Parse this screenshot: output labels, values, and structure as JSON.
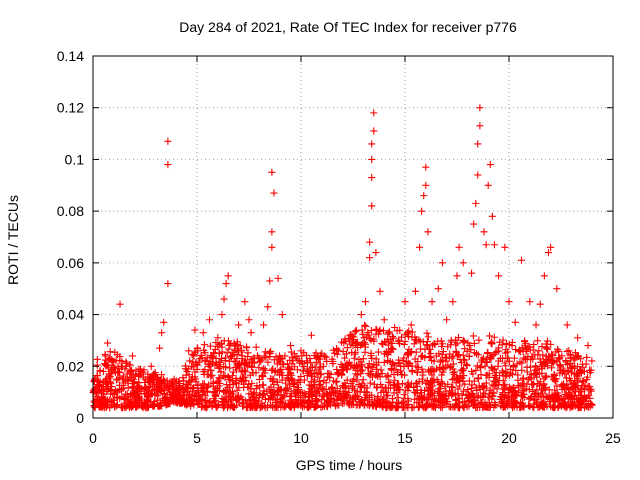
{
  "chart_data": {
    "type": "scatter",
    "title": "Day 284 of 2021, Rate Of TEC Index for receiver p776",
    "xlabel": "GPS time / hours",
    "ylabel": "ROTI / TECUs",
    "xlim": [
      0,
      25
    ],
    "ylim": [
      0,
      0.14
    ],
    "x_ticks": [
      0,
      5,
      10,
      15,
      20,
      25
    ],
    "x_tick_labels": [
      "0",
      "5",
      "10",
      "15",
      "20",
      "25"
    ],
    "y_ticks": [
      0,
      0.02,
      0.04,
      0.06,
      0.08,
      0.1,
      0.12,
      0.14
    ],
    "y_tick_labels": [
      "0",
      "0.02",
      "0.04",
      "0.06",
      "0.08",
      "0.1",
      "0.12",
      "0.14"
    ],
    "grid": true,
    "marker": "+",
    "color": "#ff0000",
    "series": [
      {
        "name": "ROTI",
        "points": [
          [
            0.1,
            0.006
          ],
          [
            0.3,
            0.012
          ],
          [
            0.5,
            0.018
          ],
          [
            0.6,
            0.024
          ],
          [
            0.7,
            0.029
          ],
          [
            1.0,
            0.022
          ],
          [
            1.2,
            0.015
          ],
          [
            1.3,
            0.044
          ],
          [
            1.6,
            0.02
          ],
          [
            1.9,
            0.024
          ],
          [
            2.3,
            0.018
          ],
          [
            2.8,
            0.02
          ],
          [
            3.2,
            0.027
          ],
          [
            3.3,
            0.033
          ],
          [
            3.4,
            0.037
          ],
          [
            3.6,
            0.052
          ],
          [
            3.6,
            0.098
          ],
          [
            3.6,
            0.107
          ],
          [
            3.9,
            0.015
          ],
          [
            4.6,
            0.026
          ],
          [
            4.9,
            0.034
          ],
          [
            5.3,
            0.033
          ],
          [
            5.6,
            0.038
          ],
          [
            5.8,
            0.025
          ],
          [
            6.0,
            0.031
          ],
          [
            6.2,
            0.04
          ],
          [
            6.3,
            0.046
          ],
          [
            6.4,
            0.052
          ],
          [
            6.5,
            0.055
          ],
          [
            7.0,
            0.036
          ],
          [
            7.3,
            0.045
          ],
          [
            7.5,
            0.038
          ],
          [
            7.6,
            0.033
          ],
          [
            8.2,
            0.036
          ],
          [
            8.4,
            0.043
          ],
          [
            8.5,
            0.053
          ],
          [
            8.6,
            0.066
          ],
          [
            8.6,
            0.072
          ],
          [
            8.7,
            0.087
          ],
          [
            8.6,
            0.095
          ],
          [
            8.9,
            0.054
          ],
          [
            9.1,
            0.04
          ],
          [
            9.5,
            0.028
          ],
          [
            10.0,
            0.026
          ],
          [
            10.5,
            0.032
          ],
          [
            11.0,
            0.025
          ],
          [
            11.8,
            0.026
          ],
          [
            12.5,
            0.028
          ],
          [
            12.9,
            0.04
          ],
          [
            13.1,
            0.045
          ],
          [
            13.3,
            0.062
          ],
          [
            13.3,
            0.068
          ],
          [
            13.4,
            0.082
          ],
          [
            13.4,
            0.093
          ],
          [
            13.4,
            0.1
          ],
          [
            13.4,
            0.106
          ],
          [
            13.5,
            0.111
          ],
          [
            13.5,
            0.118
          ],
          [
            13.6,
            0.064
          ],
          [
            13.8,
            0.049
          ],
          [
            14.0,
            0.038
          ],
          [
            14.5,
            0.035
          ],
          [
            15.0,
            0.045
          ],
          [
            15.3,
            0.036
          ],
          [
            15.5,
            0.049
          ],
          [
            15.7,
            0.066
          ],
          [
            15.8,
            0.08
          ],
          [
            15.9,
            0.086
          ],
          [
            16.0,
            0.09
          ],
          [
            16.0,
            0.097
          ],
          [
            16.1,
            0.072
          ],
          [
            16.3,
            0.045
          ],
          [
            16.6,
            0.05
          ],
          [
            16.8,
            0.06
          ],
          [
            17.0,
            0.038
          ],
          [
            17.3,
            0.045
          ],
          [
            17.5,
            0.055
          ],
          [
            17.6,
            0.066
          ],
          [
            17.8,
            0.06
          ],
          [
            18.2,
            0.056
          ],
          [
            18.3,
            0.075
          ],
          [
            18.4,
            0.083
          ],
          [
            18.5,
            0.094
          ],
          [
            18.5,
            0.106
          ],
          [
            18.6,
            0.113
          ],
          [
            18.6,
            0.12
          ],
          [
            18.8,
            0.072
          ],
          [
            18.9,
            0.067
          ],
          [
            19.0,
            0.09
          ],
          [
            19.1,
            0.098
          ],
          [
            19.2,
            0.078
          ],
          [
            19.3,
            0.067
          ],
          [
            19.5,
            0.055
          ],
          [
            19.8,
            0.066
          ],
          [
            20.0,
            0.045
          ],
          [
            20.3,
            0.037
          ],
          [
            20.6,
            0.061
          ],
          [
            21.0,
            0.045
          ],
          [
            21.3,
            0.036
          ],
          [
            21.5,
            0.044
          ],
          [
            21.7,
            0.055
          ],
          [
            21.9,
            0.064
          ],
          [
            22.0,
            0.066
          ],
          [
            22.3,
            0.05
          ],
          [
            22.8,
            0.036
          ],
          [
            23.3,
            0.031
          ],
          [
            23.8,
            0.028
          ]
        ],
        "background_envelope": {
          "x": [
            0,
            1,
            2,
            3,
            4,
            5,
            6,
            7,
            8,
            9,
            10,
            11,
            12,
            13,
            14,
            15,
            16,
            17,
            18,
            19,
            20,
            21,
            22,
            23,
            24
          ],
          "y_low": [
            0.004,
            0.004,
            0.004,
            0.004,
            0.006,
            0.004,
            0.004,
            0.004,
            0.004,
            0.004,
            0.004,
            0.004,
            0.005,
            0.005,
            0.004,
            0.004,
            0.004,
            0.004,
            0.004,
            0.004,
            0.004,
            0.004,
            0.004,
            0.004,
            0.004
          ],
          "y_high": [
            0.024,
            0.026,
            0.02,
            0.018,
            0.014,
            0.028,
            0.03,
            0.03,
            0.028,
            0.025,
            0.026,
            0.025,
            0.03,
            0.036,
            0.035,
            0.034,
            0.033,
            0.03,
            0.032,
            0.032,
            0.03,
            0.03,
            0.03,
            0.026,
            0.024
          ]
        }
      }
    ]
  }
}
